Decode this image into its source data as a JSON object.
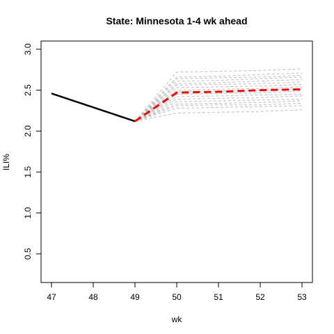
{
  "chart_data": {
    "type": "line",
    "title": "State: Minnesota 1-4 wk ahead",
    "xlabel": "wk",
    "ylabel": "ILI%",
    "xlim": [
      47,
      53
    ],
    "ylim": [
      0.15,
      3.1
    ],
    "x_ticks": [
      "47",
      "48",
      "49",
      "50",
      "51",
      "52",
      "53"
    ],
    "y_ticks": [
      "0.5",
      "1.0",
      "1.5",
      "2.0",
      "2.5",
      "3.0"
    ],
    "grid": false,
    "legend": "none",
    "series": [
      {
        "role": "observed",
        "color": "#000000",
        "style": "solid",
        "points": [
          [
            47,
            2.46
          ],
          [
            49,
            2.12
          ]
        ]
      },
      {
        "role": "forecast-mean",
        "color": "#ff0000",
        "style": "dashed",
        "points": [
          [
            49,
            2.12
          ],
          [
            50,
            2.47
          ],
          [
            51,
            2.48
          ],
          [
            52,
            2.5
          ],
          [
            53,
            2.51
          ]
        ]
      }
    ],
    "ensemble": {
      "color": "#bebebe",
      "style": "dashed",
      "start": [
        49,
        2.12
      ],
      "members": [
        [
          2.72,
          2.73,
          2.74,
          2.76
        ],
        [
          2.66,
          2.67,
          2.69,
          2.71
        ],
        [
          2.64,
          2.65,
          2.66,
          2.68
        ],
        [
          2.61,
          2.62,
          2.64,
          2.66
        ],
        [
          2.58,
          2.59,
          2.61,
          2.63
        ],
        [
          2.56,
          2.57,
          2.58,
          2.6
        ],
        [
          2.53,
          2.54,
          2.55,
          2.57
        ],
        [
          2.5,
          2.51,
          2.52,
          2.54
        ],
        [
          2.48,
          2.49,
          2.5,
          2.52
        ],
        [
          2.45,
          2.46,
          2.47,
          2.49
        ],
        [
          2.42,
          2.43,
          2.44,
          2.45
        ],
        [
          2.39,
          2.4,
          2.41,
          2.43
        ],
        [
          2.36,
          2.37,
          2.38,
          2.39
        ],
        [
          2.33,
          2.34,
          2.35,
          2.37
        ],
        [
          2.31,
          2.32,
          2.32,
          2.34
        ],
        [
          2.28,
          2.29,
          2.3,
          2.31
        ],
        [
          2.22,
          2.23,
          2.24,
          2.26
        ]
      ]
    }
  }
}
